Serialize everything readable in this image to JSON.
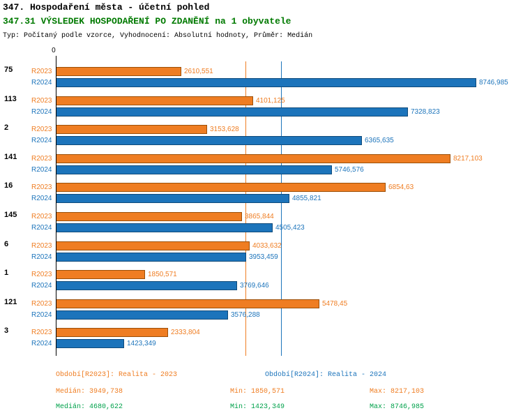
{
  "header": {
    "title_line1": "347. Hospodaření města - účetní pohled",
    "title_line2": "347.31 VÝSLEDEK HOSPODAŘENÍ PO ZDANĚNÍ na 1 obyvatele",
    "subtitle": "Typ: Počítaný podle vzorce, Vyhodnocení: Absolutní hodnoty, Průměr: Medián"
  },
  "colors": {
    "r2023_orange": "#EF7D22",
    "r2024_blue": "#1C74BB",
    "title_green": "#007A00",
    "stats_green": "#00A14B",
    "axis_black": "#000000"
  },
  "chart_data": {
    "type": "bar",
    "orientation": "horizontal",
    "title": "347.31 VÝSLEDEK HOSPODAŘENÍ PO ZDANĚNÍ na 1 obyvatele",
    "xlim": [
      0,
      8746.985
    ],
    "zero_tick_label": "0",
    "grid": false,
    "legend_position": "bottom",
    "categories": [
      "75",
      "113",
      "2",
      "141",
      "16",
      "145",
      "6",
      "1",
      "121",
      "3"
    ],
    "series": [
      {
        "name": "R2023",
        "legend": "Období[R2023]: Realita - 2023",
        "color": "#EF7D22",
        "border_color": "#9C4F07",
        "values": [
          2610.551,
          4101.125,
          3153.628,
          8217.103,
          6854.63,
          3865.844,
          4033.632,
          1850.571,
          5478.45,
          2333.804
        ],
        "value_labels": [
          "2610,551",
          "4101,125",
          "3153,628",
          "8217,103",
          "6854,63",
          "3865,844",
          "4033,632",
          "1850,571",
          "5478,45",
          "2333,804"
        ]
      },
      {
        "name": "R2024",
        "legend": "Období[R2024]: Realita - 2024",
        "color": "#1C74BB",
        "border_color": "#0F4A7A",
        "values": [
          8746.985,
          7328.823,
          6365.635,
          5746.576,
          4855.821,
          4505.423,
          3953.459,
          3769.646,
          3576.288,
          1423.349
        ],
        "value_labels": [
          "8746,985",
          "7328,823",
          "6365,635",
          "5746,576",
          "4855,821",
          "4505,423",
          "3953,459",
          "3769,646",
          "3576,288",
          "1423,349"
        ]
      }
    ],
    "reference_lines": [
      {
        "name": "median-r2023",
        "value": 3949.738,
        "color": "#EF7D22"
      },
      {
        "name": "median-r2024",
        "value": 4680.622,
        "color": "#1C74BB"
      }
    ]
  },
  "legend": {
    "r2023": "Období[R2023]: Realita - 2023",
    "r2024": "Období[R2024]: Realita - 2024"
  },
  "stats": {
    "r2023": {
      "median": "Medián: 3949,738",
      "min": "Min: 1850,571",
      "max": "Max: 8217,103"
    },
    "r2024": {
      "median": "Medián: 4680,622",
      "min": "Min: 1423,349",
      "max": "Max: 8746,985"
    }
  }
}
